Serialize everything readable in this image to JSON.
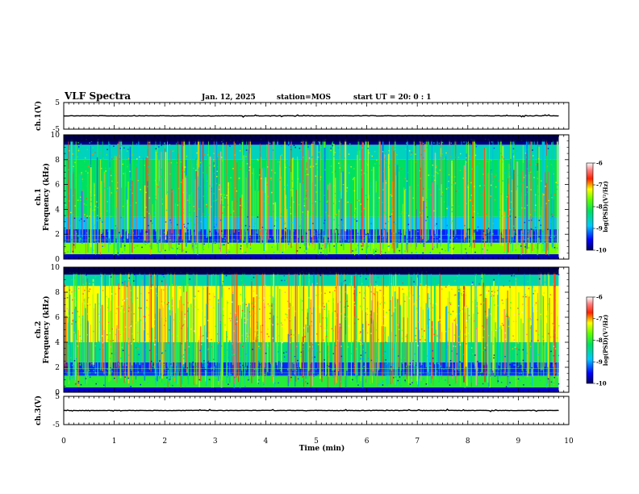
{
  "header": {
    "title": "VLF Spectra",
    "date": "Jan. 12, 2025",
    "station": "station=MOS",
    "start_ut": "start UT =  20: 0  : 1"
  },
  "chart_data": [
    {
      "type": "line",
      "name": "ch1-waveform",
      "ylabel": "ch.1(V)",
      "ylim": [
        -5,
        5
      ],
      "yticks": [
        "5",
        "-5"
      ],
      "x": [
        0,
        9.8
      ],
      "y": [
        0,
        0
      ]
    },
    {
      "type": "heatmap",
      "name": "ch1-spectrogram",
      "ylabel": "ch.1\nFrequency (kHz)",
      "ylim": [
        0,
        10
      ],
      "yticks": [
        "0",
        "2",
        "4",
        "6",
        "8",
        "10"
      ],
      "xlim": [
        0,
        10
      ],
      "data_xmax": 9.8,
      "colorbar": {
        "label": "log(PSD)(V²/Hz)",
        "min": -10,
        "max": -6,
        "ticks": [
          "-6",
          "-7",
          "-8",
          "-9",
          "-10"
        ]
      },
      "description_bands": [
        {
          "freq_khz": [
            0.0,
            0.4
          ],
          "level": -9.7
        },
        {
          "freq_khz": [
            0.4,
            1.3
          ],
          "level": -7.6
        },
        {
          "freq_khz": [
            1.3,
            2.4
          ],
          "level": -9.4
        },
        {
          "freq_khz": [
            2.4,
            3.4
          ],
          "level": -8.9
        },
        {
          "freq_khz": [
            3.4,
            8.0
          ],
          "level": -8.2
        },
        {
          "freq_khz": [
            8.0,
            9.2
          ],
          "level": -8.6
        },
        {
          "freq_khz": [
            9.2,
            10.0
          ],
          "level": -9.9
        }
      ]
    },
    {
      "type": "heatmap",
      "name": "ch2-spectrogram",
      "ylabel": "ch.2\nFrequency (kHz)",
      "ylim": [
        0,
        10
      ],
      "yticks": [
        "0",
        "2",
        "4",
        "6",
        "8",
        "10"
      ],
      "xlim": [
        0,
        10
      ],
      "data_xmax": 9.8,
      "colorbar": {
        "label": "log(PSD)(V²/Hz)",
        "min": -10,
        "max": -6,
        "ticks": [
          "-6",
          "-7",
          "-8",
          "-9",
          "-10"
        ]
      },
      "description_bands": [
        {
          "freq_khz": [
            0.0,
            0.4
          ],
          "level": -9.7
        },
        {
          "freq_khz": [
            0.4,
            1.3
          ],
          "level": -8.0
        },
        {
          "freq_khz": [
            1.3,
            2.4
          ],
          "level": -9.4
        },
        {
          "freq_khz": [
            2.4,
            4.0
          ],
          "level": -8.3
        },
        {
          "freq_khz": [
            4.0,
            8.5
          ],
          "level": -7.2
        },
        {
          "freq_khz": [
            8.5,
            9.4
          ],
          "level": -8.5
        },
        {
          "freq_khz": [
            9.4,
            10.0
          ],
          "level": -9.9
        }
      ]
    },
    {
      "type": "line",
      "name": "ch3-waveform",
      "ylabel": "ch.3(V)",
      "ylim": [
        -5,
        5
      ],
      "yticks": [
        "5",
        "-5"
      ],
      "x": [
        0,
        9.8
      ],
      "y": [
        0,
        0
      ]
    }
  ],
  "xaxis": {
    "label": "Time (min)",
    "ticks": [
      "0",
      "1",
      "2",
      "3",
      "4",
      "5",
      "6",
      "7",
      "8",
      "9",
      "10"
    ]
  }
}
